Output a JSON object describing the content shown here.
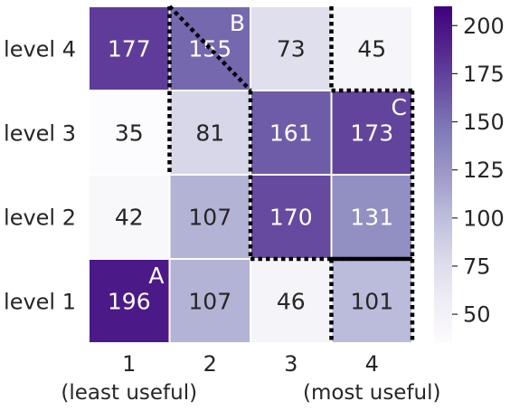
{
  "chart_data": {
    "type": "heatmap",
    "x_ticks": [
      "1",
      "2",
      "3",
      "4"
    ],
    "x_tick_notes": [
      "(least useful)",
      "",
      "",
      "(most useful)"
    ],
    "y_ticks": [
      "level 4",
      "level 3",
      "level 2",
      "level 1"
    ],
    "values": [
      [
        177,
        155,
        73,
        45
      ],
      [
        35,
        81,
        161,
        173
      ],
      [
        42,
        107,
        170,
        131
      ],
      [
        196,
        107,
        46,
        101
      ]
    ],
    "colorbar": {
      "colormap": "Purples",
      "vmin": 35,
      "vmax": 210,
      "ticks": [
        50,
        75,
        100,
        125,
        150,
        175,
        200
      ]
    },
    "annotations": [
      {
        "text": "A",
        "row": 3,
        "col": 0
      },
      {
        "text": "B",
        "row": 0,
        "col": 1
      },
      {
        "text": "C",
        "row": 1,
        "col": 3
      }
    ],
    "dotted_borders": [
      {
        "segments": [
          [
            1,
            0,
            1,
            2
          ],
          [
            1,
            0,
            2,
            1
          ],
          [
            2,
            1,
            2,
            3
          ],
          [
            2,
            3,
            4,
            3
          ],
          [
            4,
            3,
            4,
            4
          ]
        ]
      },
      {
        "segments": [
          [
            3,
            0,
            3,
            1
          ],
          [
            3,
            1,
            4,
            1
          ],
          [
            4,
            1,
            4,
            3
          ],
          [
            4,
            3,
            3,
            3
          ],
          [
            3,
            3,
            3,
            4
          ]
        ]
      }
    ]
  }
}
